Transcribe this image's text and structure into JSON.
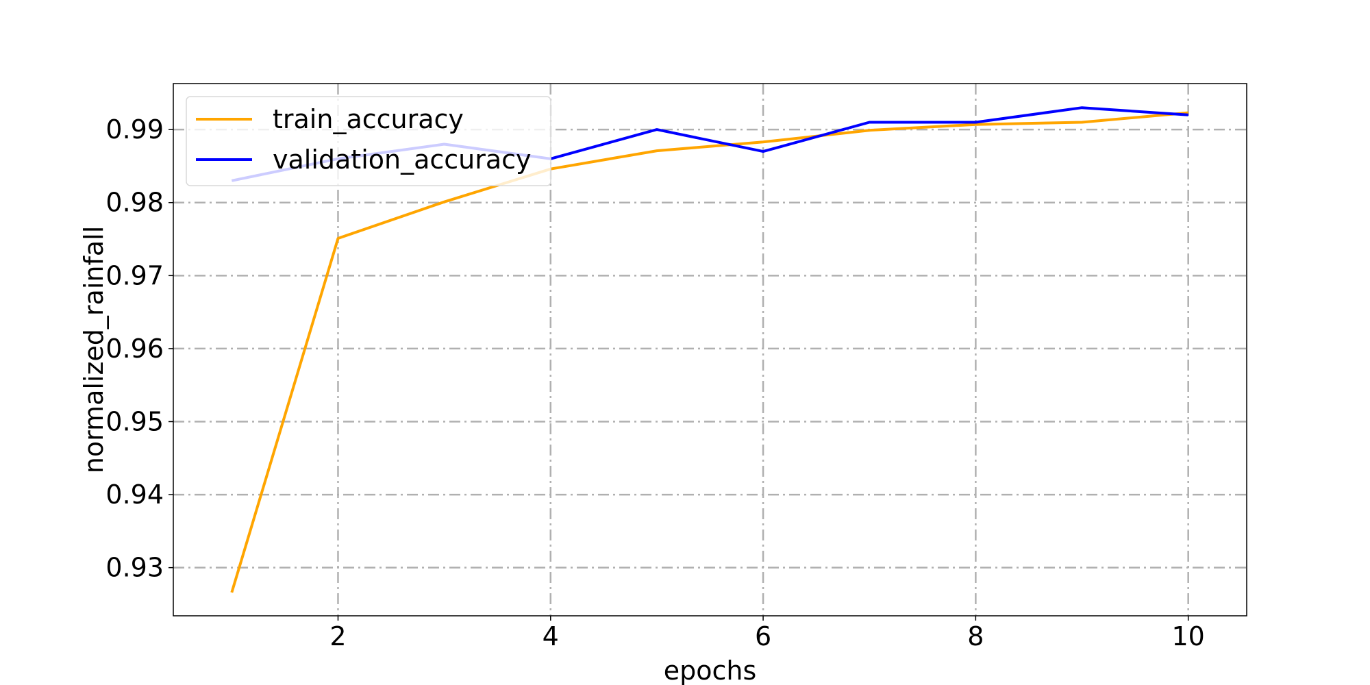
{
  "chart_data": {
    "type": "line",
    "title": "",
    "xlabel": "epochs",
    "ylabel": "normalized_rainfall",
    "xlim": [
      0.45,
      10.55
    ],
    "ylim": [
      0.9234,
      0.9963
    ],
    "xticks": [
      2,
      4,
      6,
      8,
      10
    ],
    "yticks": [
      0.93,
      0.94,
      0.95,
      0.96,
      0.97,
      0.98,
      0.99
    ],
    "xtick_labels": [
      "2",
      "4",
      "6",
      "8",
      "10"
    ],
    "ytick_labels": [
      "0.93",
      "0.94",
      "0.95",
      "0.96",
      "0.97",
      "0.98",
      "0.99"
    ],
    "grid": true,
    "legend_position": "top-left",
    "x": [
      1,
      2,
      3,
      4,
      5,
      6,
      7,
      8,
      9,
      10
    ],
    "series": [
      {
        "name": "train_accuracy",
        "color": "#FFA500",
        "values": [
          0.9266,
          0.9751,
          0.9801,
          0.9846,
          0.9871,
          0.9883,
          0.9899,
          0.9907,
          0.991,
          0.9923
        ]
      },
      {
        "name": "validation_accuracy",
        "color": "#0000FF",
        "values": [
          0.983,
          0.986,
          0.988,
          0.986,
          0.99,
          0.987,
          0.991,
          0.991,
          0.993,
          0.992
        ]
      }
    ]
  }
}
